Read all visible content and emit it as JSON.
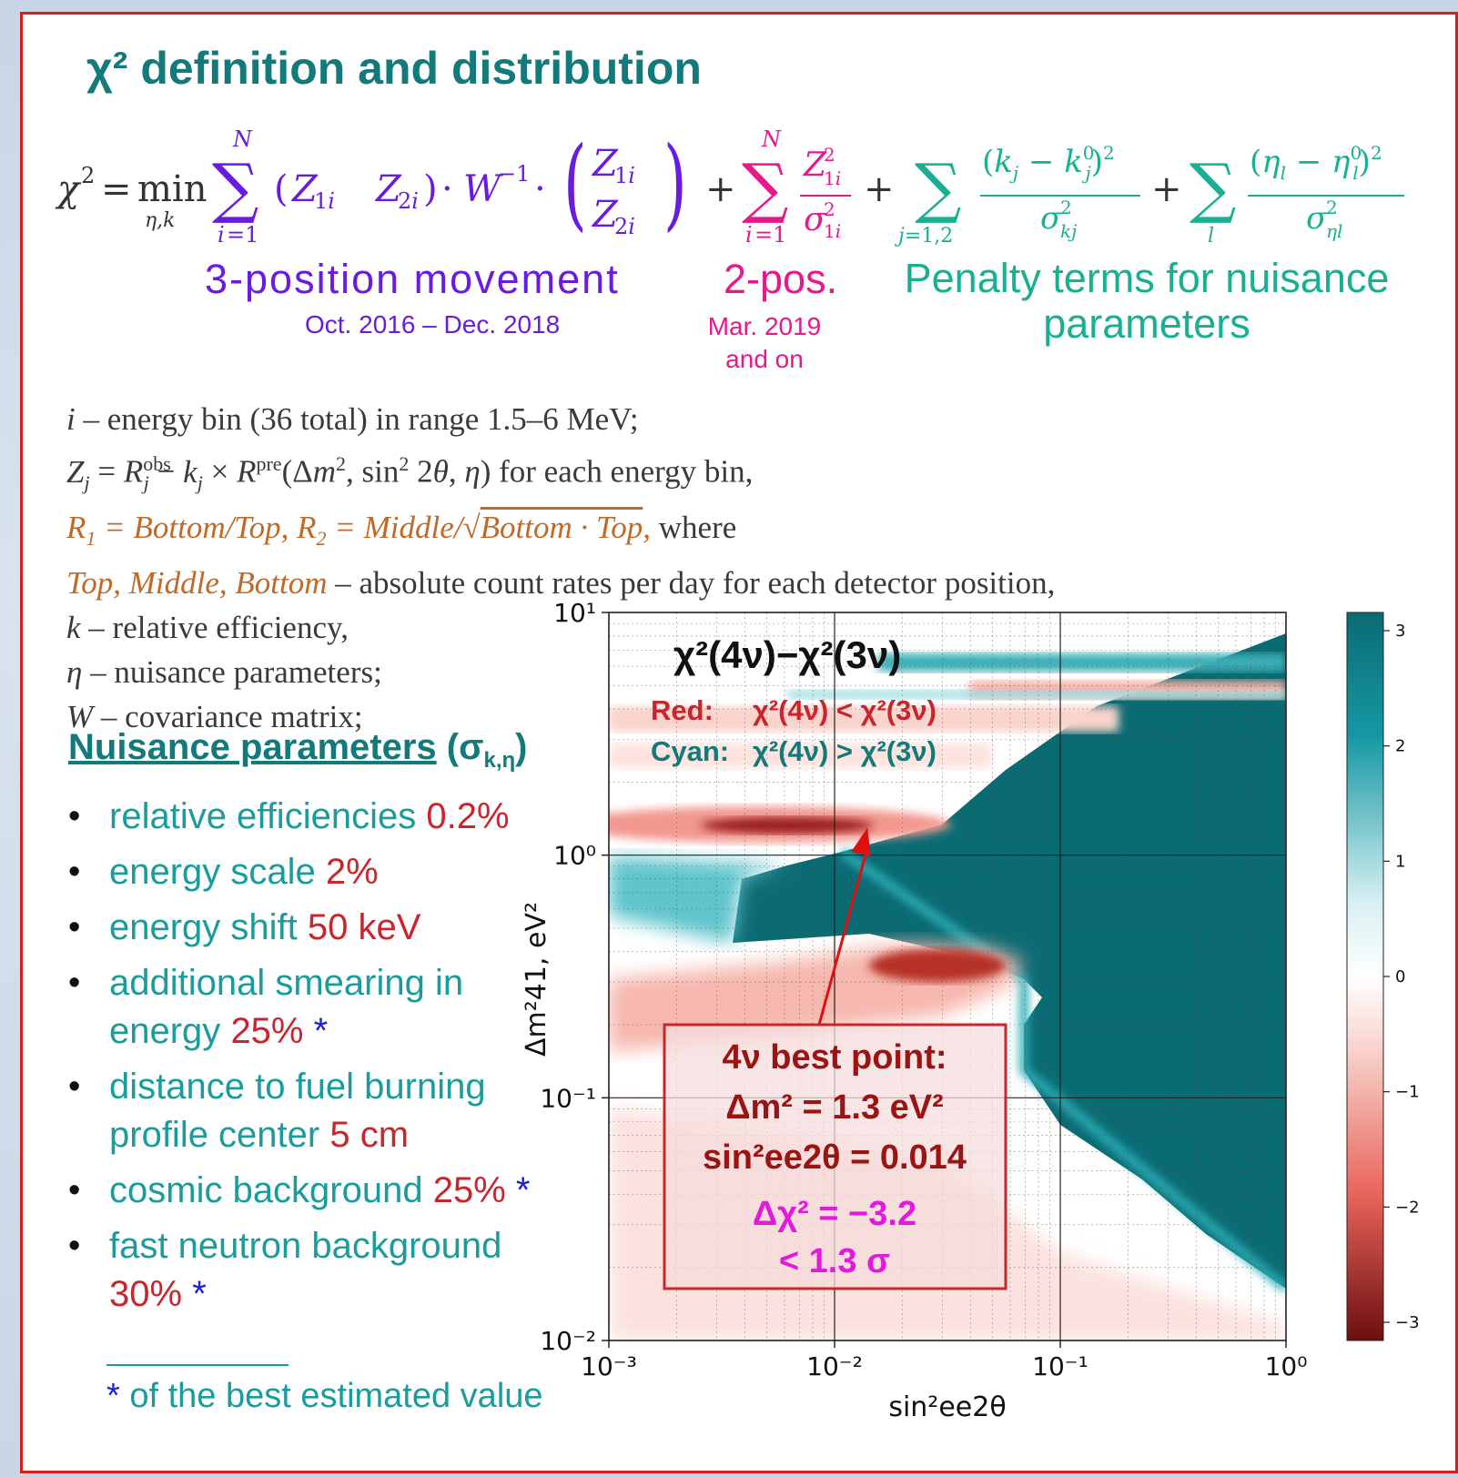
{
  "title": "χ² definition and distribution",
  "equation_labels": {
    "three_pos": "3-position movement",
    "three_pos_dates": "Oct. 2016 – Dec. 2018",
    "two_pos": "2-pos.",
    "two_pos_dates_1": "Mar. 2019",
    "two_pos_dates_2": "and on",
    "penalty_1": "Penalty terms for nuisance",
    "penalty_2": "parameters"
  },
  "definitions": {
    "line1": "– energy bin (36 total) in range 1.5–6 MeV;",
    "line2_tail": "for each energy bin,",
    "line3_tail": "where",
    "line4": "– absolute count rates per day for each detector position,",
    "line5": "– relative efficiency,",
    "line6": "– nuisance parameters;",
    "line7": "– covariance matrix;"
  },
  "nuisance": {
    "heading": "Nuisance parameters",
    "heading_sigma": "(σ",
    "heading_sub": "k,η",
    "heading_close": ")",
    "items": [
      {
        "text": "relative efficiencies",
        "value": "0.2%",
        "star": ""
      },
      {
        "text": "energy scale",
        "value": "2%",
        "star": ""
      },
      {
        "text": "energy shift",
        "value": "50 keV",
        "star": ""
      },
      {
        "text": "additional smearing in energy",
        "value": "25%",
        "star": "*"
      },
      {
        "text": "distance to fuel burning profile center",
        "value": "5 cm",
        "star": ""
      },
      {
        "text": "cosmic background",
        "value": "25%",
        "star": "*"
      },
      {
        "text": "fast neutron background",
        "value": "30%",
        "star": "*"
      }
    ],
    "footnote_star": "*",
    "footnote": "of the best estimated value"
  },
  "chart_data": {
    "type": "heatmap",
    "title": "χ²(4ν)−χ²(3ν)",
    "xlabel": "sin²ee2θ",
    "ylabel": "Δm²41, eV²",
    "x_scale": "log",
    "y_scale": "log",
    "xlim": [
      0.001,
      1
    ],
    "ylim": [
      0.01,
      10
    ],
    "x_ticks": [
      "10⁻³",
      "10⁻²",
      "10⁻¹",
      "10⁰"
    ],
    "y_ticks": [
      "10⁻²",
      "10⁻¹",
      "10⁰",
      "10¹"
    ],
    "colorbar_range": [
      -3,
      3
    ],
    "colorbar_ticks": [
      "3",
      "2",
      "1",
      "0",
      "−1",
      "−2",
      "−3"
    ],
    "colors": {
      "negative": "#6b0f0f",
      "zero": "#ffffff",
      "positive": "#0b6b73"
    },
    "legend_red_label": "Red:",
    "legend_red_text": "χ²(4ν) < χ²(3ν)",
    "legend_cyan_label": "Cyan:",
    "legend_cyan_text": "χ²(4ν) > χ²(3ν)",
    "best_point": {
      "dm2": 1.3,
      "sin2": 0.014,
      "dchi2": -3.2
    },
    "annotation": {
      "line1": "4ν best point:",
      "line2": "Δm² = 1.3 eV²",
      "line3": "sin²ee2θ = 0.014",
      "line4": "Δχ² = −3.2",
      "line5": "< 1.3 σ"
    }
  }
}
